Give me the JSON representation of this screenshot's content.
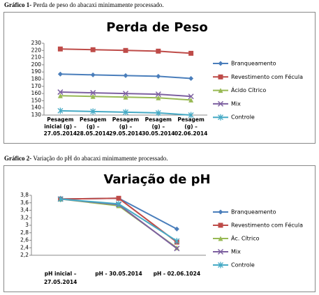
{
  "captions": [
    {
      "label": "Gráfico 1-",
      "text": "Perda de peso do abacaxi minimamente processado."
    },
    {
      "label": "Gráfico 2-",
      "text": "Variação do pH do abacaxi minimamente processado."
    }
  ],
  "chart_data": [
    {
      "type": "line",
      "title": "Perda de Peso",
      "categories": [
        [
          "Pesagem",
          "inicial (g) –",
          "27.05.2014"
        ],
        [
          "Pesagem",
          "(g) –",
          "28.05.2014"
        ],
        [
          "Pesagem",
          "(g) –",
          "29.05.2014"
        ],
        [
          "Pesagem",
          "(g) –",
          "30.05.2014"
        ],
        [
          "Pesagem",
          "(g) –",
          "02.06.2014"
        ]
      ],
      "ylim": [
        130,
        230
      ],
      "yticks": [
        130,
        140,
        150,
        160,
        170,
        180,
        190,
        200,
        210,
        220,
        230
      ],
      "grid": false,
      "legend": "right",
      "series": [
        {
          "name": "Branqueamento",
          "color": "#4a7ebb",
          "marker": "diamond",
          "values": [
            187,
            186,
            185,
            184,
            181
          ]
        },
        {
          "name": "Revestimento com Fécula",
          "color": "#be4b48",
          "marker": "square",
          "values": [
            222,
            221,
            220,
            219,
            216
          ]
        },
        {
          "name": "Ácido Cítrico",
          "color": "#98b954",
          "marker": "triangle",
          "values": [
            157,
            156,
            155,
            154,
            151
          ]
        },
        {
          "name": "Mix",
          "color": "#7d60a0",
          "marker": "x",
          "values": [
            162,
            161,
            160,
            159,
            156
          ]
        },
        {
          "name": "Controle",
          "color": "#46aac5",
          "marker": "star",
          "values": [
            136,
            135,
            134,
            133,
            130
          ]
        }
      ]
    },
    {
      "type": "line",
      "title": "Variação de pH",
      "categories": [
        [
          "pH inicial –",
          "27.05.2014"
        ],
        [
          "pH - 30.05.2014"
        ],
        [
          "pH -  02.06.1024"
        ]
      ],
      "ylim": [
        2.2,
        3.8
      ],
      "yticks": [
        {
          "value": 2.2,
          "label": "2,2"
        },
        {
          "value": 2.4,
          "label": "2,4"
        },
        {
          "value": 2.6,
          "label": "2,6"
        },
        {
          "value": 2.8,
          "label": "2,8"
        },
        3,
        {
          "value": 3.2,
          "label": "3,2"
        },
        {
          "value": 3.4,
          "label": "3,4"
        },
        {
          "value": 3.6,
          "label": "3,6"
        },
        {
          "value": 3.8,
          "label": "3,8"
        }
      ],
      "grid": false,
      "legend": "right",
      "series": [
        {
          "name": "Branqueamento",
          "color": "#4a7ebb",
          "marker": "diamond",
          "values": [
            3.7,
            3.72,
            2.9
          ]
        },
        {
          "name": "Revestimento com Fécula",
          "color": "#be4b48",
          "marker": "square",
          "values": [
            3.7,
            3.72,
            2.55
          ]
        },
        {
          "name": "Ác. Cítrico",
          "color": "#98b954",
          "marker": "triangle",
          "values": [
            3.7,
            3.52,
            2.4
          ]
        },
        {
          "name": "Mix",
          "color": "#7d60a0",
          "marker": "x",
          "values": [
            3.7,
            3.55,
            2.38
          ]
        },
        {
          "name": "Controle",
          "color": "#46aac5",
          "marker": "star",
          "values": [
            3.7,
            3.57,
            2.58
          ]
        }
      ]
    }
  ]
}
